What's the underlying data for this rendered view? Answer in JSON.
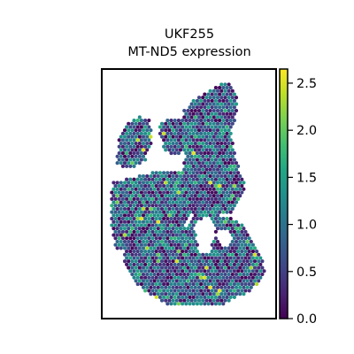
{
  "chart_data": {
    "type": "scatter",
    "subtype": "spatial-hex-spots",
    "title": [
      "UKF255",
      "MT-ND5 expression"
    ],
    "xlabel": "",
    "ylabel": "",
    "axes_ticks_visible": false,
    "grid": false,
    "colormap": "viridis",
    "colorbar": {
      "vmin": 0.0,
      "vmax": 2.65,
      "ticks": [
        0.0,
        0.5,
        1.0,
        1.5,
        2.0,
        2.5
      ],
      "tick_labels": [
        "0.0",
        "0.5",
        "1.0",
        "1.5",
        "2.0",
        "2.5"
      ]
    },
    "value_distribution": {
      "typical_min": 0.0,
      "typical_max": 1.6,
      "occasional_max": 2.6
    }
  }
}
